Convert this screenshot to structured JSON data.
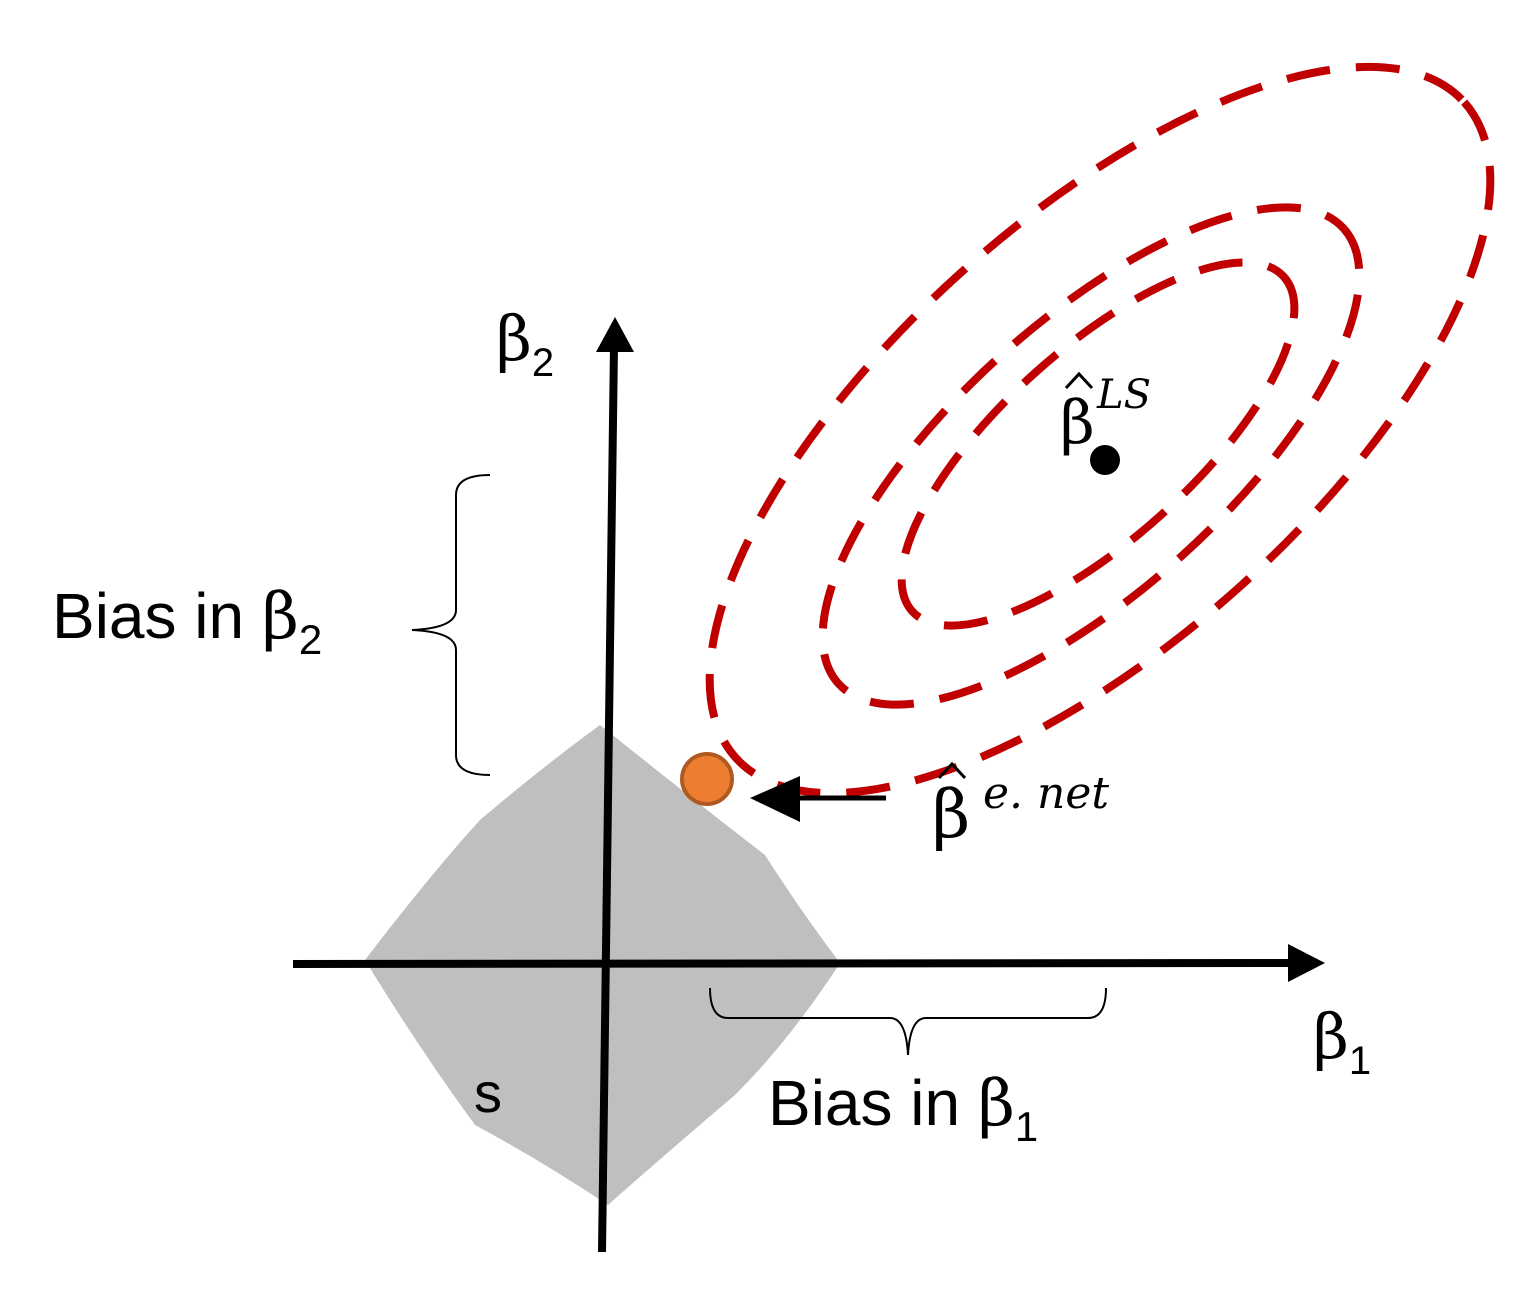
{
  "colors": {
    "background": "#ffffff",
    "axis": "#000000",
    "constraint_region": "#bfbfbf",
    "contour": "#c00000",
    "elastic_net_point_fill": "#ed7d31",
    "elastic_net_point_stroke": "#ae5a21",
    "ls_point": "#000000",
    "bracket": "#000000"
  },
  "axes": {
    "y_label_symbol": "β",
    "y_label_sub": "2",
    "x_label_symbol": "β",
    "x_label_sub": "1"
  },
  "region": {
    "label": "s"
  },
  "estimates": {
    "ls": {
      "symbol": "β",
      "hat": "^",
      "superscript": "LS"
    },
    "elastic_net": {
      "symbol": "β",
      "hat": "^",
      "superscript": "e. net"
    }
  },
  "bias": {
    "beta2": {
      "text": "Bias in ",
      "symbol": "β",
      "sub": "2"
    },
    "beta1": {
      "text": "Bias in ",
      "symbol": "β",
      "sub": "1"
    }
  }
}
